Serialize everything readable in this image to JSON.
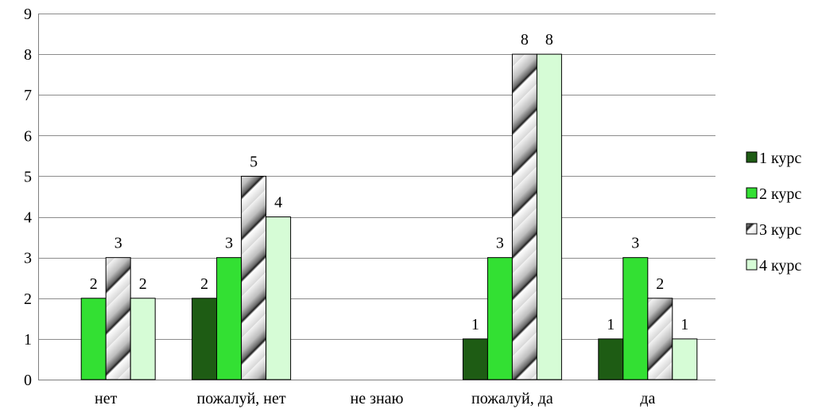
{
  "chart_data": {
    "type": "bar",
    "categories": [
      "нет",
      "пожалуй, нет",
      "не знаю",
      "пожалуй, да",
      "да"
    ],
    "series": [
      {
        "name": "1 курс",
        "values": [
          0,
          2,
          0,
          1,
          1
        ],
        "labels": [
          "",
          "2",
          "",
          "1",
          "1"
        ],
        "color": "#1e5c14"
      },
      {
        "name": "2 курс",
        "values": [
          2,
          3,
          0,
          3,
          3
        ],
        "labels": [
          "2",
          "3",
          "",
          "3",
          "3"
        ],
        "color": "#33e033"
      },
      {
        "name": "3 курс",
        "values": [
          3,
          5,
          0,
          8,
          2
        ],
        "labels": [
          "3",
          "5",
          "",
          "8",
          "2"
        ],
        "color": "#9a9a9a"
      },
      {
        "name": "4 курс",
        "values": [
          2,
          4,
          0,
          8,
          1
        ],
        "labels": [
          "2",
          "4",
          "",
          "8",
          "1"
        ],
        "color": "#d6fcd6"
      }
    ],
    "yticks": [
      "0",
      "1",
      "2",
      "3",
      "4",
      "5",
      "6",
      "7",
      "8",
      "9"
    ],
    "ylim": [
      0,
      9
    ],
    "grid": true,
    "legend": "right"
  }
}
